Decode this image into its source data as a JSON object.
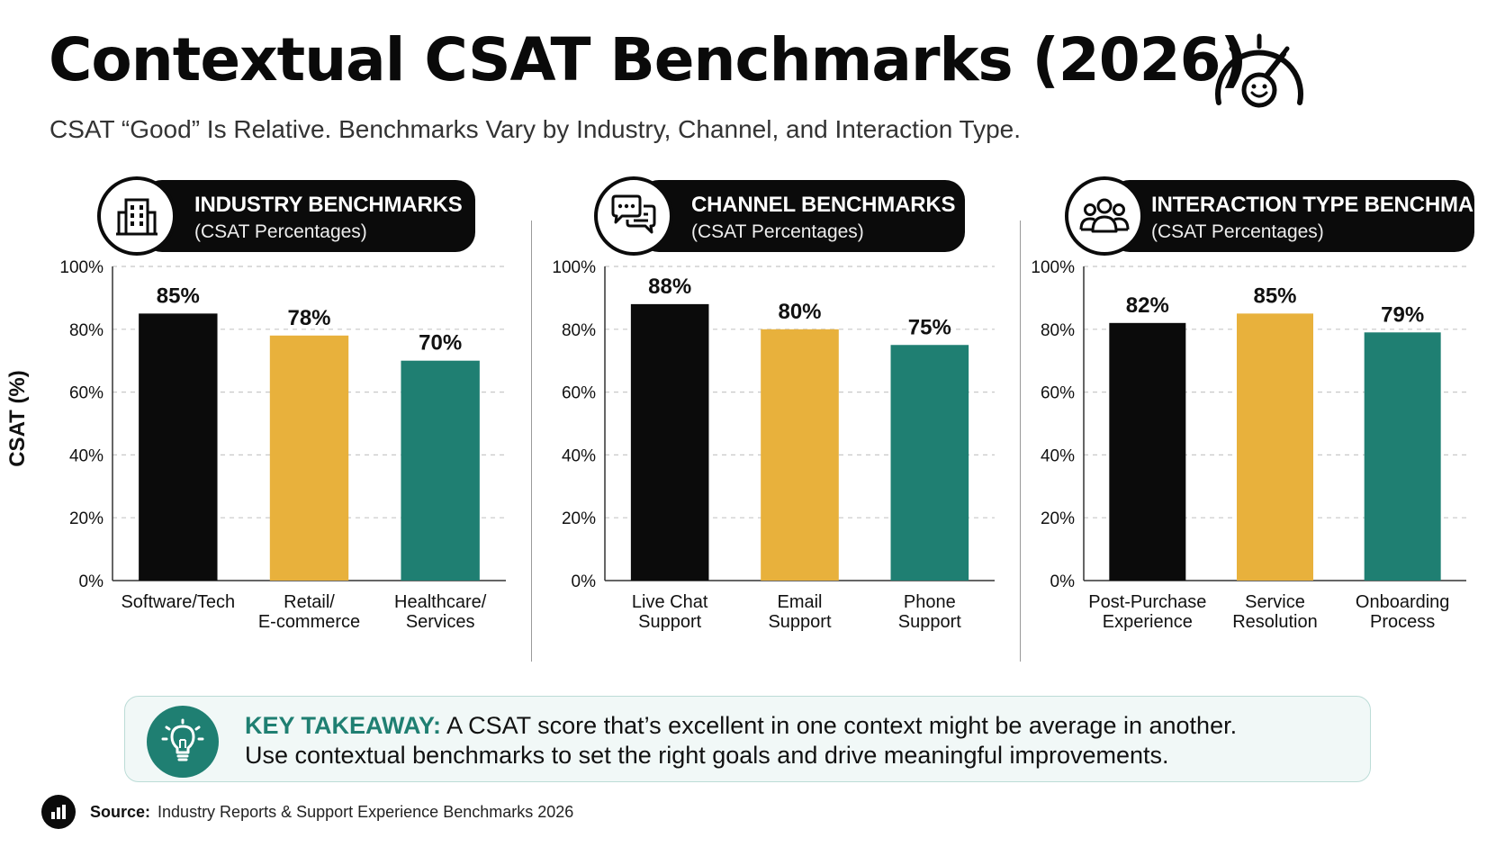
{
  "title": "Contextual CSAT Benchmarks (2026)",
  "subtitle": "CSAT “Good” Is Relative. Benchmarks Vary by Industry, Channel, and Interaction Type.",
  "y_axis_label": "CSAT (%)",
  "colors": {
    "black": "#0b0b0b",
    "gold": "#e8b13c",
    "teal": "#1f7f72"
  },
  "panels": [
    {
      "title": "INDUSTRY BENCHMARKS",
      "subtitle": "(CSAT Percentages)",
      "icon": "building-icon"
    },
    {
      "title": "CHANNEL BENCHMARKS",
      "subtitle": "(CSAT Percentages)",
      "icon": "chat-bubbles-icon"
    },
    {
      "title": "INTERACTION TYPE BENCHMARKS",
      "subtitle": "(CSAT Percentages)",
      "icon": "people-group-icon"
    }
  ],
  "chart_data": [
    {
      "type": "bar",
      "title": "INDUSTRY BENCHMARKS",
      "categories": [
        "Software/Tech",
        "Retail/\nE-commerce",
        "Healthcare/\nServices"
      ],
      "values": [
        85,
        78,
        70
      ],
      "data_labels": [
        "85%",
        "78%",
        "70%"
      ],
      "bar_colors": [
        "#0b0b0b",
        "#e8b13c",
        "#1f7f72"
      ],
      "ylabel": "CSAT (%)",
      "ylim": [
        0,
        100
      ],
      "yticks": [
        "0%",
        "20%",
        "40%",
        "60%",
        "80%",
        "100%"
      ],
      "grid": true
    },
    {
      "type": "bar",
      "title": "CHANNEL BENCHMARKS",
      "categories": [
        "Live Chat\nSupport",
        "Email\nSupport",
        "Phone\nSupport"
      ],
      "values": [
        88,
        80,
        75
      ],
      "data_labels": [
        "88%",
        "80%",
        "75%"
      ],
      "bar_colors": [
        "#0b0b0b",
        "#e8b13c",
        "#1f7f72"
      ],
      "ylim": [
        0,
        100
      ],
      "yticks": [
        "0%",
        "20%",
        "40%",
        "60%",
        "80%",
        "100%"
      ],
      "grid": true
    },
    {
      "type": "bar",
      "title": "INTERACTION TYPE BENCHMARKS",
      "categories": [
        "Post-Purchase\nExperience",
        "Service\nResolution",
        "Onboarding\nProcess"
      ],
      "values": [
        82,
        85,
        79
      ],
      "data_labels": [
        "82%",
        "85%",
        "79%"
      ],
      "bar_colors": [
        "#0b0b0b",
        "#e8b13c",
        "#1f7f72"
      ],
      "ylim": [
        0,
        100
      ],
      "yticks": [
        "0%",
        "20%",
        "40%",
        "60%",
        "80%",
        "100%"
      ],
      "grid": true
    }
  ],
  "takeaway": {
    "label": "KEY TAKEAWAY:",
    "line1": "A CSAT score that’s excellent in one context might be average in another.",
    "line2": "Use contextual benchmarks to set the right goals and drive meaningful improvements."
  },
  "source": {
    "label": "Source:",
    "text": "Industry Reports & Support Experience Benchmarks 2026"
  }
}
